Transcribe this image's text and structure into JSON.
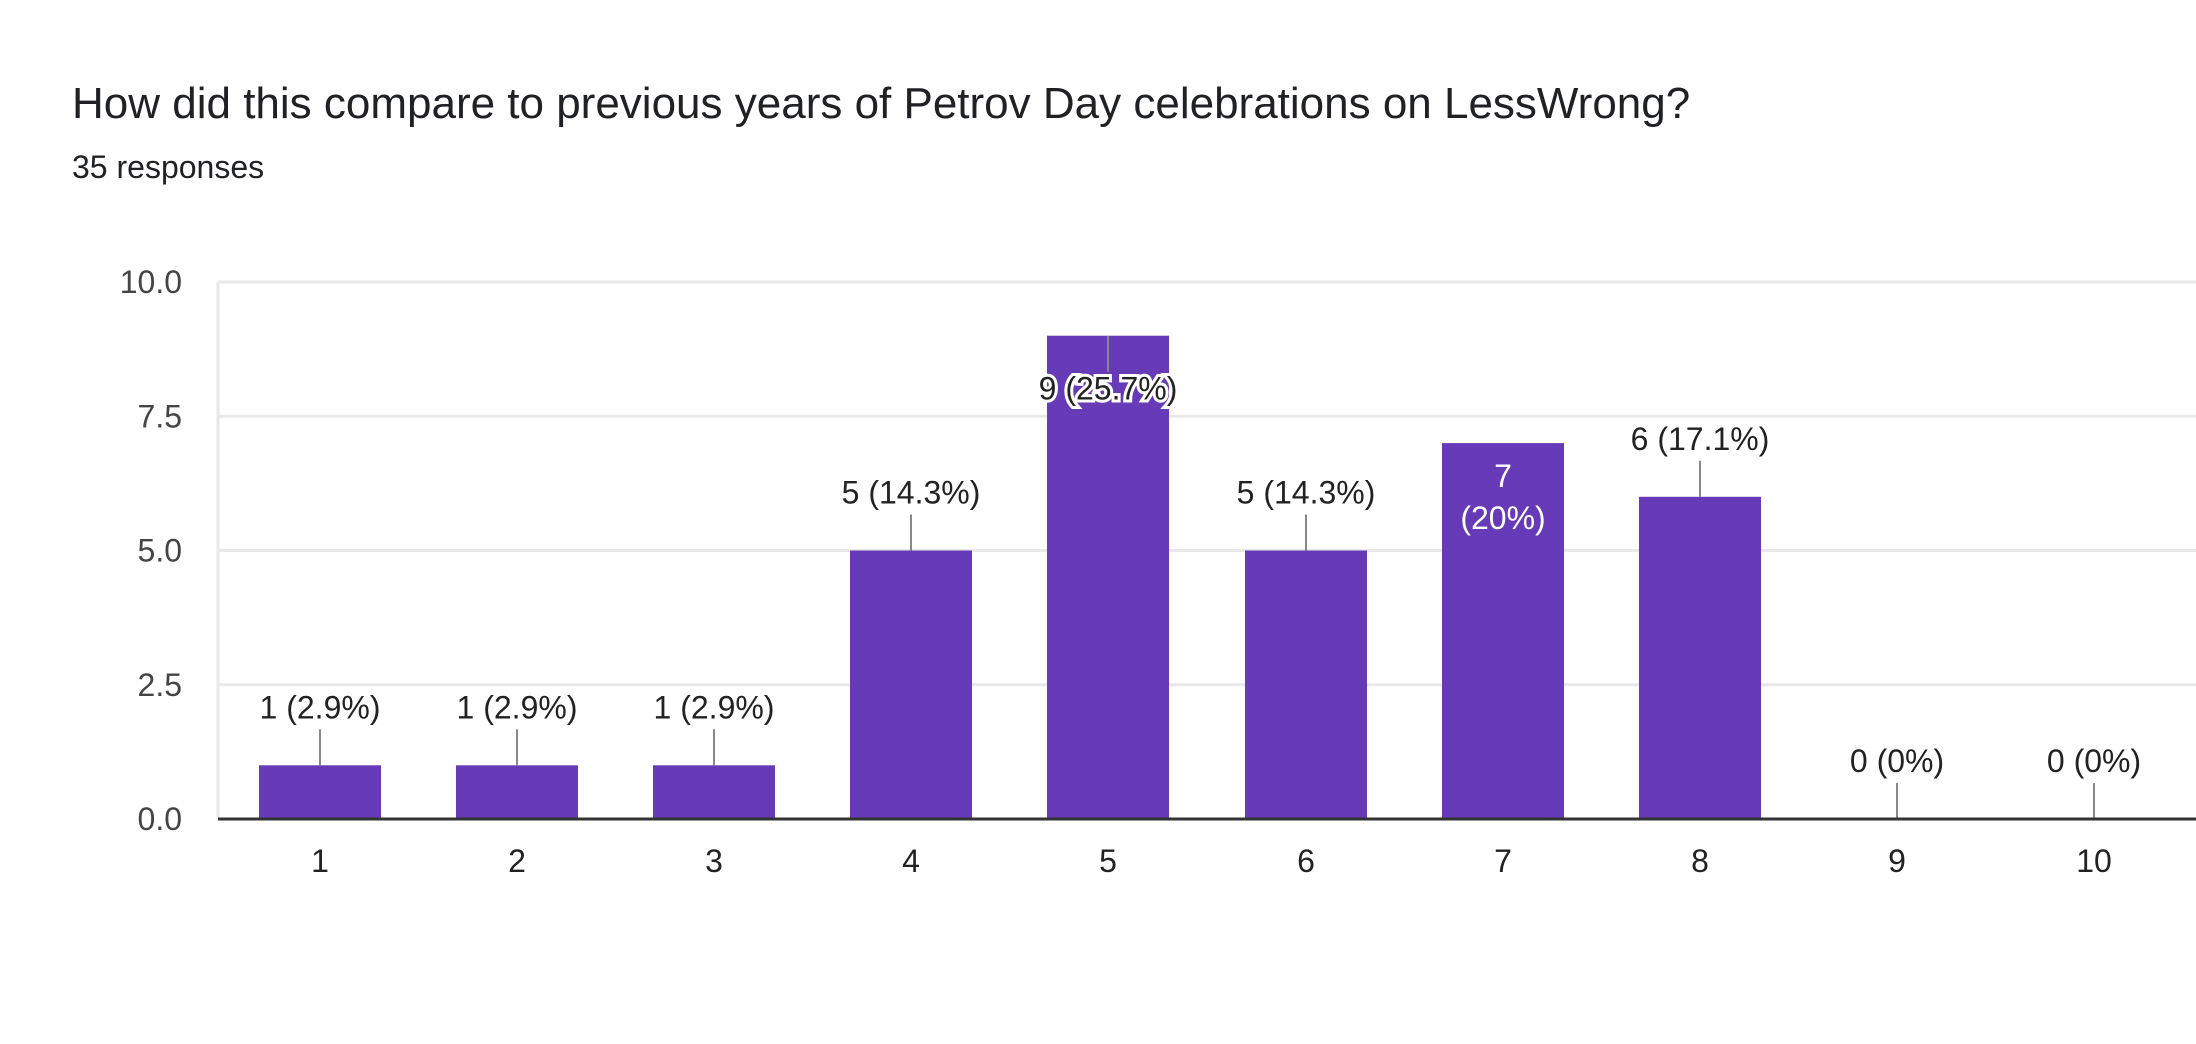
{
  "header": {
    "title": "How did this compare to previous years of Petrov Day celebrations on LessWrong?",
    "responses": "35 responses"
  },
  "colors": {
    "bar": "#673ab7",
    "grid": "#e8e8e8",
    "axis": "#333333",
    "leader": "#888888"
  },
  "chart_data": {
    "type": "bar",
    "categories": [
      "1",
      "2",
      "3",
      "4",
      "5",
      "6",
      "7",
      "8",
      "9",
      "10"
    ],
    "values": [
      1,
      1,
      1,
      5,
      9,
      5,
      7,
      6,
      0,
      0
    ],
    "data_labels": [
      "1 (2.9%)",
      "1 (2.9%)",
      "1 (2.9%)",
      "5 (14.3%)",
      "9 (25.7%)",
      "5 (14.3%)",
      "7 (20%)",
      "6 (17.1%)",
      "0 (0%)",
      "0 (0%)"
    ],
    "ylim": [
      0,
      10
    ],
    "yticks": [
      "0.0",
      "2.5",
      "5.0",
      "7.5",
      "10.0"
    ],
    "grid": true,
    "legend": "none"
  }
}
